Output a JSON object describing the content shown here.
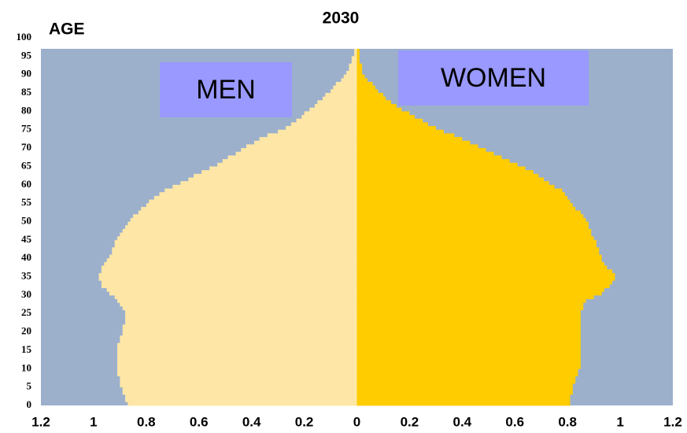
{
  "chart_data": {
    "type": "pyramid",
    "title": "2030",
    "y_label": "AGE",
    "ages": [
      0,
      1,
      2,
      3,
      4,
      5,
      6,
      7,
      8,
      9,
      10,
      11,
      12,
      13,
      14,
      15,
      16,
      17,
      18,
      19,
      20,
      21,
      22,
      23,
      24,
      25,
      26,
      27,
      28,
      29,
      30,
      31,
      32,
      33,
      34,
      35,
      36,
      37,
      38,
      39,
      40,
      41,
      42,
      43,
      44,
      45,
      46,
      47,
      48,
      49,
      50,
      51,
      52,
      53,
      54,
      55,
      56,
      57,
      58,
      59,
      60,
      61,
      62,
      63,
      64,
      65,
      66,
      67,
      68,
      69,
      70,
      71,
      72,
      73,
      74,
      75,
      76,
      77,
      78,
      79,
      80,
      81,
      82,
      83,
      84,
      85,
      86,
      87,
      88,
      89,
      90,
      91,
      92,
      93,
      94,
      95,
      96
    ],
    "series": [
      {
        "name": "MEN",
        "color": "#fde6a6",
        "values": [
          0.87,
          0.88,
          0.88,
          0.89,
          0.89,
          0.9,
          0.9,
          0.9,
          0.91,
          0.91,
          0.91,
          0.91,
          0.91,
          0.91,
          0.91,
          0.91,
          0.91,
          0.9,
          0.9,
          0.89,
          0.89,
          0.89,
          0.88,
          0.88,
          0.88,
          0.88,
          0.89,
          0.9,
          0.91,
          0.92,
          0.94,
          0.95,
          0.97,
          0.97,
          0.98,
          0.98,
          0.97,
          0.97,
          0.96,
          0.95,
          0.94,
          0.93,
          0.93,
          0.92,
          0.92,
          0.91,
          0.9,
          0.89,
          0.88,
          0.87,
          0.86,
          0.85,
          0.83,
          0.82,
          0.8,
          0.79,
          0.77,
          0.75,
          0.73,
          0.7,
          0.67,
          0.64,
          0.62,
          0.59,
          0.56,
          0.53,
          0.51,
          0.49,
          0.46,
          0.44,
          0.42,
          0.39,
          0.37,
          0.34,
          0.3,
          0.27,
          0.25,
          0.23,
          0.21,
          0.2,
          0.18,
          0.16,
          0.15,
          0.13,
          0.12,
          0.1,
          0.09,
          0.08,
          0.06,
          0.05,
          0.04,
          0.03,
          0.03,
          0.02,
          0.02,
          0.01,
          0.01
        ]
      },
      {
        "name": "WOMEN",
        "color": "#ffcc00",
        "values": [
          0.81,
          0.81,
          0.81,
          0.82,
          0.82,
          0.82,
          0.83,
          0.83,
          0.84,
          0.84,
          0.85,
          0.85,
          0.85,
          0.85,
          0.85,
          0.85,
          0.85,
          0.85,
          0.85,
          0.85,
          0.85,
          0.85,
          0.85,
          0.85,
          0.85,
          0.85,
          0.86,
          0.86,
          0.87,
          0.9,
          0.93,
          0.94,
          0.96,
          0.97,
          0.98,
          0.98,
          0.97,
          0.95,
          0.94,
          0.93,
          0.93,
          0.92,
          0.92,
          0.91,
          0.91,
          0.9,
          0.89,
          0.89,
          0.88,
          0.88,
          0.87,
          0.86,
          0.85,
          0.83,
          0.82,
          0.81,
          0.8,
          0.79,
          0.78,
          0.75,
          0.73,
          0.71,
          0.69,
          0.67,
          0.64,
          0.61,
          0.58,
          0.55,
          0.52,
          0.49,
          0.46,
          0.43,
          0.4,
          0.37,
          0.33,
          0.3,
          0.27,
          0.25,
          0.22,
          0.2,
          0.17,
          0.15,
          0.13,
          0.11,
          0.1,
          0.08,
          0.07,
          0.06,
          0.04,
          0.03,
          0.02,
          0.02,
          0.02,
          0.01,
          0.01,
          0.01,
          0.01
        ]
      }
    ],
    "background": "#9cb0cc",
    "label_box_color": "#9999ff",
    "xlim": [
      -1.2,
      1.2
    ],
    "xticks": [
      {
        "value": -1.2,
        "label": "1.2"
      },
      {
        "value": -1,
        "label": "1"
      },
      {
        "value": -0.8,
        "label": "0.8"
      },
      {
        "value": -0.6,
        "label": "0.6"
      },
      {
        "value": -0.4,
        "label": "0.4"
      },
      {
        "value": -0.2,
        "label": "0.2"
      },
      0,
      0.2,
      0.4,
      0.6,
      0.8,
      1,
      1.2
    ],
    "ylim": [
      0,
      97
    ],
    "yticks": [
      0,
      5,
      10,
      15,
      20,
      25,
      30,
      35,
      40,
      45,
      50,
      55,
      60,
      65,
      70,
      75,
      80,
      85,
      90,
      95,
      100
    ]
  }
}
